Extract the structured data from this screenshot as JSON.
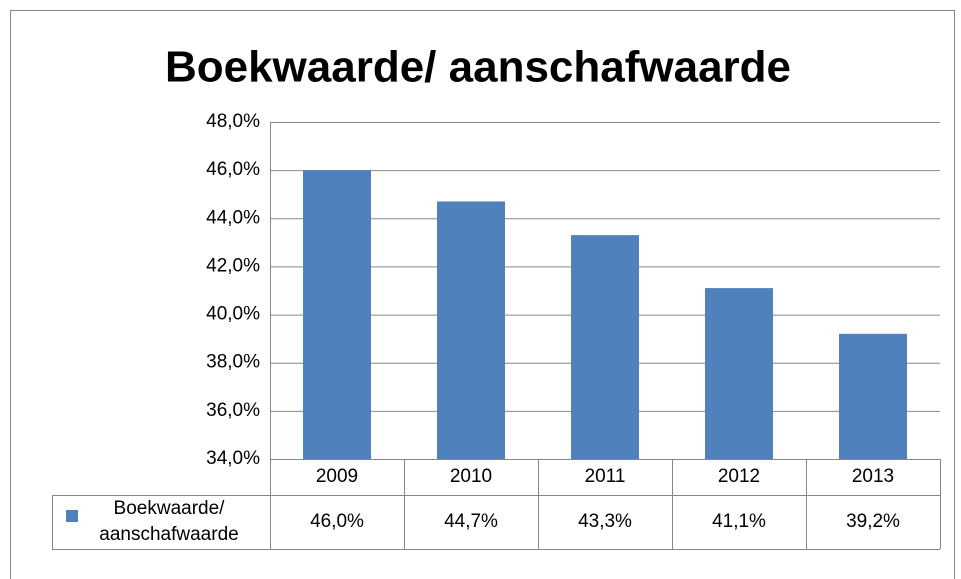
{
  "chart_data": {
    "type": "bar",
    "title": "Boekwaarde/ aanschafwaarde",
    "categories": [
      "2009",
      "2010",
      "2011",
      "2012",
      "2013"
    ],
    "series": [
      {
        "name": "Boekwaarde/ aanschafwaarde",
        "color": "#4f81bd",
        "values": [
          46.0,
          44.7,
          43.3,
          41.1,
          39.2
        ],
        "value_labels": [
          "46,0%",
          "44,7%",
          "43,3%",
          "41,1%",
          "39,2%"
        ]
      }
    ],
    "ylim": [
      34,
      48
    ],
    "yticks": [
      {
        "value": 34,
        "label": "34,0%"
      },
      {
        "value": 36,
        "label": "36,0%"
      },
      {
        "value": 38,
        "label": "38,0%"
      },
      {
        "value": 40,
        "label": "40,0%"
      },
      {
        "value": 42,
        "label": "42,0%"
      },
      {
        "value": 44,
        "label": "44,0%"
      },
      {
        "value": 46,
        "label": "46,0%"
      },
      {
        "value": 48,
        "label": "48,0%"
      }
    ],
    "grid": true,
    "data_table": true
  }
}
